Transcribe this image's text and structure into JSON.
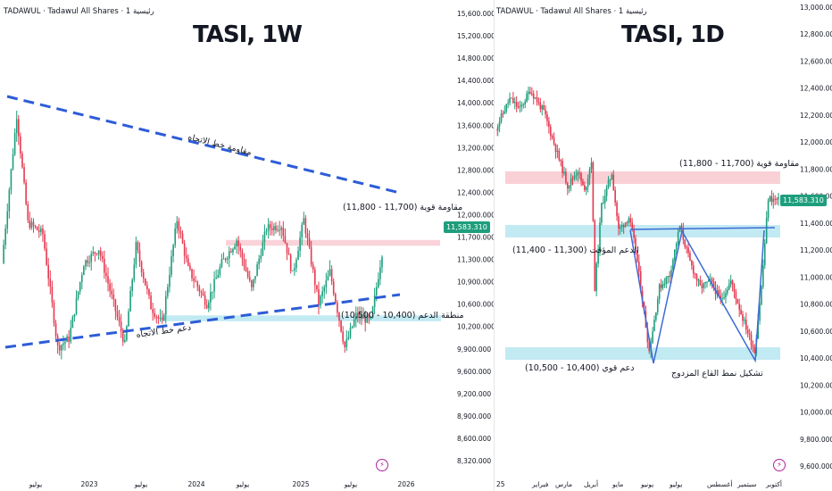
{
  "colors": {
    "up": "#1e9e7c",
    "down": "#e53950",
    "trend": "#2d5cd7",
    "pattern": "#3d6bd6",
    "resistance_zone": "#f8c8cf",
    "support_zone": "#b7e6f0",
    "price_tag": "#1e9e7c",
    "logo": "#b0249b"
  },
  "chart_data": [
    {
      "type": "candlestick",
      "header": "TADAWUL · Tadawul All Shares · 1 رئيسية",
      "title": "TASI, 1W",
      "price_tag": "11,583.310",
      "yaxis": {
        "range": [
          8000,
          15700
        ],
        "ticks": [
          "15,600.000",
          "15,200.000",
          "14,800.000",
          "14,400.000",
          "14,000.000",
          "13,600.000",
          "13,200.000",
          "12,800.000",
          "12,400.000",
          "12,000.000",
          "11,700.000",
          "11,300.000",
          "10,900.000",
          "10,600.000",
          "10,200.000",
          "9,900.000",
          "9,600.000",
          "9,200.000",
          "8,900.000",
          "8,600.000",
          "8,320.000"
        ]
      },
      "xaxis": {
        "ticks": [
          "يوليو",
          "2023",
          "يوليو",
          "2024",
          "يوليو",
          "2025",
          "يوليو",
          "2026"
        ]
      },
      "anchors": [
        [
          0,
          11400
        ],
        [
          8,
          13950
        ],
        [
          14,
          12100
        ],
        [
          22,
          11900
        ],
        [
          30,
          9950
        ],
        [
          36,
          10100
        ],
        [
          44,
          11400
        ],
        [
          52,
          11650
        ],
        [
          60,
          10700
        ],
        [
          66,
          10000
        ],
        [
          72,
          11700
        ],
        [
          80,
          10650
        ],
        [
          86,
          10350
        ],
        [
          94,
          12150
        ],
        [
          100,
          11300
        ],
        [
          110,
          10700
        ],
        [
          118,
          11400
        ],
        [
          126,
          11800
        ],
        [
          134,
          10950
        ],
        [
          142,
          12000
        ],
        [
          150,
          12050
        ],
        [
          156,
          11200
        ],
        [
          162,
          12150
        ],
        [
          170,
          10700
        ],
        [
          176,
          11250
        ],
        [
          184,
          9950
        ],
        [
          190,
          10500
        ],
        [
          198,
          10400
        ],
        [
          204,
          11583
        ]
      ],
      "resistance_zone": {
        "label": "مقاومة قوية (11,700 - 11,800)",
        "low": 11700,
        "high": 11800
      },
      "support_zone": {
        "label": "منطقة الدعم (10,400 - 10,500)",
        "low": 10400,
        "high": 10500
      },
      "trend_resistance": {
        "label": "مقاومة خط الاتجاه"
      },
      "trend_support": {
        "label": "دعم خط الاتجاه"
      }
    },
    {
      "type": "candlestick",
      "header": "TADAWUL · Tadawul All Shares · 1 رئيسية",
      "title": "TASI, 1D",
      "price_tag": "11,583.310",
      "yaxis": {
        "range": [
          9500,
          13100
        ],
        "ticks": [
          "13,000.000",
          "12,800.000",
          "12,600.000",
          "12,400.000",
          "12,200.000",
          "12,000.000",
          "11,800.000",
          "11,600.000",
          "11,400.000",
          "11,200.000",
          "11,000.000",
          "10,800.000",
          "10,600.000",
          "10,400.000",
          "10,200.000",
          "10,000.000",
          "9,800.000",
          "9,600.000"
        ]
      },
      "xaxis": {
        "ticks": [
          "25",
          "فبراير",
          "مارس",
          "أبريل",
          "مايو",
          "يونيو",
          "يوليو",
          "أغسطس",
          "سبتمبر",
          "أكتوبر"
        ]
      },
      "anchors": [
        [
          0,
          12100
        ],
        [
          10,
          12380
        ],
        [
          16,
          12300
        ],
        [
          22,
          12450
        ],
        [
          30,
          12280
        ],
        [
          38,
          11950
        ],
        [
          44,
          11700
        ],
        [
          50,
          11820
        ],
        [
          54,
          11650
        ],
        [
          58,
          11900
        ],
        [
          60,
          10900
        ],
        [
          64,
          11550
        ],
        [
          70,
          11800
        ],
        [
          74,
          11350
        ],
        [
          80,
          11450
        ],
        [
          84,
          11200
        ],
        [
          88,
          10800
        ],
        [
          92,
          10400
        ],
        [
          98,
          10900
        ],
        [
          104,
          11000
        ],
        [
          110,
          11380
        ],
        [
          116,
          11100
        ],
        [
          122,
          10900
        ],
        [
          128,
          10950
        ],
        [
          134,
          10800
        ],
        [
          140,
          10950
        ],
        [
          146,
          10700
        ],
        [
          150,
          10550
        ],
        [
          154,
          10400
        ],
        [
          158,
          10900
        ],
        [
          162,
          11600
        ],
        [
          168,
          11583
        ]
      ],
      "resistance_zone": {
        "label": "مقاومة قوية (11,700 - 11,800)",
        "low": 11700,
        "high": 11800
      },
      "intermediate_support": {
        "label": "الدعم المؤقت (11,300 - 11,400)",
        "low": 11300,
        "high": 11400
      },
      "strong_support": {
        "label": "دعم قوي (10,400 - 10,500)",
        "low": 10400,
        "high": 10500
      },
      "pattern": {
        "label": "تشكيل نمط القاع المزدوج"
      }
    }
  ]
}
